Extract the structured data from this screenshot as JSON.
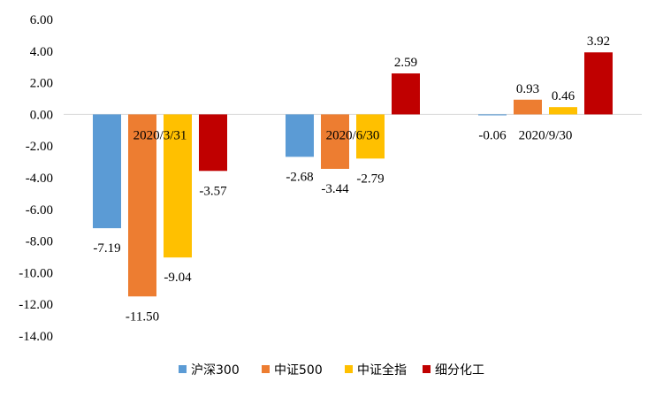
{
  "chart_data": {
    "type": "bar",
    "title": "",
    "xlabel": "",
    "ylabel": "",
    "ylim": [
      -14,
      6
    ],
    "yticks": [
      6,
      4,
      2,
      0,
      -2,
      -4,
      -6,
      -8,
      -10,
      -12,
      -14
    ],
    "ytick_labels": [
      "6.00",
      "4.00",
      "2.00",
      "0.00",
      "-2.00",
      "-4.00",
      "-6.00",
      "-8.00",
      "-10.00",
      "-12.00",
      "-14.00"
    ],
    "grid": false,
    "legend_position": "bottom",
    "categories": [
      "2020/3/31",
      "2020/6/30",
      "2020/9/30"
    ],
    "series": [
      {
        "name": "沪深300",
        "color": "#5B9BD5",
        "values": [
          -7.19,
          -2.68,
          -0.06
        ],
        "labels": [
          "-7.19",
          "-2.68",
          "-0.06"
        ]
      },
      {
        "name": "中证500",
        "color": "#ED7D31",
        "values": [
          -11.5,
          -3.44,
          0.93
        ],
        "labels": [
          "-11.50",
          "-3.44",
          "0.93"
        ]
      },
      {
        "name": "中证全指",
        "color": "#FFC000",
        "values": [
          -9.04,
          -2.79,
          0.46
        ],
        "labels": [
          "-9.04",
          "-2.79",
          "0.46"
        ]
      },
      {
        "name": "细分化工",
        "color": "#C00000",
        "values": [
          -3.57,
          2.59,
          3.92
        ],
        "labels": [
          "-3.57",
          "2.59",
          "3.92"
        ]
      }
    ]
  }
}
